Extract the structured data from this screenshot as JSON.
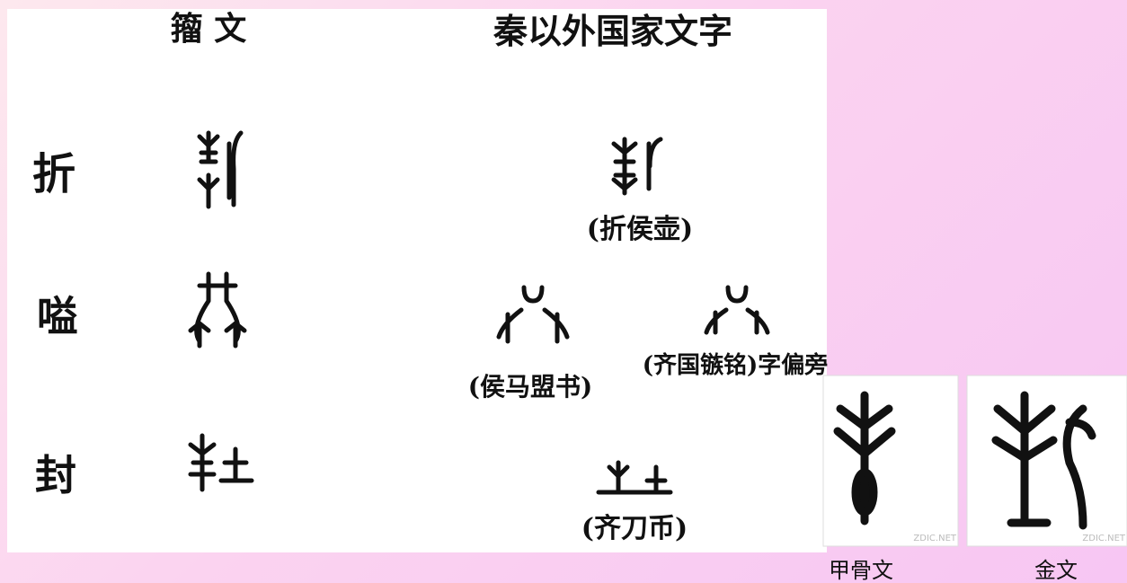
{
  "left_panel": {
    "title": "籀 文",
    "rows": [
      "折",
      "嗌",
      "封"
    ]
  },
  "right_panel": {
    "title": "秦以外国家文字",
    "captions": [
      "(折侯壶)",
      "(侯马盟书)",
      "(齐国镞铭)字偏旁",
      "(齐刀币)"
    ]
  },
  "thumbnails": [
    {
      "watermark": "ZDIC.NET",
      "label": "甲骨文"
    },
    {
      "watermark": "ZDIC.NET",
      "label": "金文"
    }
  ]
}
